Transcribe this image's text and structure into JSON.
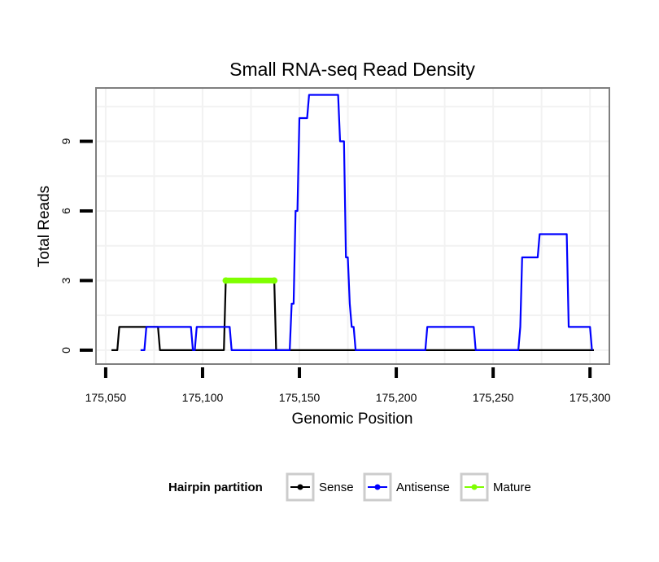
{
  "chart_data": {
    "type": "line",
    "title": "Small RNA-seq Read Density",
    "xlabel": "Genomic Position",
    "ylabel": "Total Reads",
    "xlim": [
      175045,
      175310
    ],
    "ylim": [
      -0.6,
      11.3
    ],
    "x_ticks": [
      175050,
      175100,
      175150,
      175200,
      175250,
      175300
    ],
    "x_tick_labels": [
      "175,050",
      "175,100",
      "175,150",
      "175,200",
      "175,250",
      "175,300"
    ],
    "y_ticks": [
      0,
      3,
      6,
      9
    ],
    "y_tick_labels": [
      "0",
      "3",
      "6",
      "9"
    ],
    "grid": true,
    "legend": {
      "title": "Hairpin partition",
      "position": "bottom"
    },
    "series": [
      {
        "name": "Sense",
        "color": "#000000",
        "x": [
          175053,
          175056,
          175057,
          175077,
          175078,
          175111,
          175112,
          175137,
          175138,
          175302
        ],
        "y": [
          0,
          0,
          1,
          1,
          0,
          0,
          3,
          3,
          0,
          0
        ]
      },
      {
        "name": "Antisense",
        "color": "#0000ff",
        "x": [
          175068,
          175070,
          175071,
          175094,
          175095,
          175096,
          175097,
          175114,
          175115,
          175145,
          175146,
          175147,
          175148,
          175149,
          175150,
          175151,
          175152,
          175154,
          175155,
          175156,
          175157,
          175165,
          175170,
          175171,
          175172,
          175173,
          175174,
          175175,
          175176,
          175177,
          175178,
          175179,
          175215,
          175216,
          175240,
          175241,
          175263,
          175264,
          175265,
          175266,
          175273,
          175274,
          175275,
          175283,
          175288,
          175289,
          175290,
          175291,
          175292,
          175300,
          175301
        ],
        "y": [
          0,
          0,
          1,
          1,
          0,
          0,
          1,
          1,
          0,
          0,
          2,
          2,
          6,
          6,
          10,
          10,
          10,
          10,
          11,
          11,
          11,
          11,
          11,
          9,
          9,
          9,
          4,
          4,
          2,
          1,
          1,
          0,
          0,
          1,
          1,
          0,
          0,
          1,
          4,
          4,
          4,
          5,
          5,
          5,
          5,
          1,
          1,
          1,
          1,
          1,
          0
        ]
      },
      {
        "name": "Mature",
        "color": "#7fff00",
        "x": [
          175112,
          175137
        ],
        "y": [
          3,
          3
        ]
      }
    ]
  }
}
